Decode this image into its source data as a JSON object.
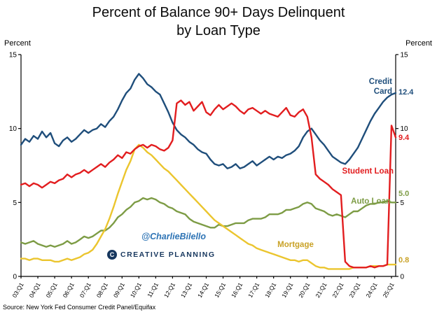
{
  "title": {
    "line1": "Percent of Balance 90+ Days Delinquent",
    "line2": "by Loan Type"
  },
  "axis": {
    "left_unit": "Percent",
    "right_unit": "Percent",
    "y_ticks": [
      0,
      5,
      10,
      15
    ]
  },
  "annotations": {
    "credit_card": [
      "Credit",
      "Card"
    ],
    "student_loan": "Student Loan",
    "auto_loan": "Auto Loan",
    "mortgage": "Mortgage"
  },
  "watermark": {
    "handle": "@CharlieBilello",
    "handle_color": "#2E74B5",
    "brand": "CREATIVE PLANNING",
    "brand_color": "#17375E",
    "logo_letter": "C"
  },
  "source": "Source: New York Fed Consumer Credit Panel/Equifax",
  "chart_data": {
    "type": "line",
    "title": "Percent of Balance 90+ Days Delinquent by Loan Type",
    "x_unit": "quarter",
    "points_start": "2003:Q1",
    "points_end": "2025:Q2",
    "x_tick_every": 4,
    "x_tick_labels": [
      "03:Q1",
      "04:Q1",
      "05:Q1",
      "06:Q1",
      "07:Q1",
      "08:Q1",
      "09:Q1",
      "10:Q1",
      "11:Q1",
      "12:Q1",
      "13:Q1",
      "14:Q1",
      "15:Q1",
      "16:Q1",
      "17:Q1",
      "18:Q1",
      "19:Q1",
      "20:Q1",
      "21:Q1",
      "22:Q1",
      "23:Q1",
      "24:Q1",
      "25:Q1"
    ],
    "ylim": [
      0,
      15
    ],
    "grid": false,
    "legend": "in-plot colored labels",
    "series": [
      {
        "name": "Credit Card",
        "color": "#1F4E7B",
        "label_color": "#1F4E7B",
        "end_label": "12.4",
        "values": [
          8.9,
          9.3,
          9.1,
          9.5,
          9.3,
          9.8,
          9.4,
          9.7,
          9.0,
          8.8,
          9.2,
          9.4,
          9.1,
          9.3,
          9.6,
          9.9,
          9.7,
          9.9,
          10.0,
          10.3,
          10.1,
          10.5,
          10.8,
          11.3,
          11.9,
          12.4,
          12.7,
          13.3,
          13.7,
          13.4,
          13.0,
          12.8,
          12.5,
          12.3,
          11.7,
          11.1,
          10.4,
          9.9,
          9.6,
          9.4,
          9.1,
          8.9,
          8.6,
          8.4,
          8.3,
          7.9,
          7.6,
          7.5,
          7.6,
          7.3,
          7.4,
          7.6,
          7.3,
          7.4,
          7.6,
          7.8,
          7.5,
          7.7,
          7.9,
          8.1,
          7.9,
          8.1,
          8.0,
          8.2,
          8.3,
          8.5,
          8.8,
          9.4,
          9.8,
          10.0,
          9.6,
          9.2,
          8.9,
          8.5,
          8.1,
          7.9,
          7.7,
          7.6,
          7.9,
          8.3,
          8.7,
          9.3,
          9.9,
          10.5,
          11.0,
          11.4,
          11.8,
          12.1,
          12.3,
          12.4
        ]
      },
      {
        "name": "Student Loan",
        "color": "#E21D1F",
        "label_color": "#E21D1F",
        "end_label": "9.4",
        "values": [
          6.2,
          6.3,
          6.1,
          6.3,
          6.2,
          6.0,
          6.2,
          6.4,
          6.3,
          6.5,
          6.6,
          6.9,
          6.7,
          6.9,
          7.0,
          7.2,
          7.0,
          7.2,
          7.4,
          7.6,
          7.4,
          7.7,
          7.9,
          8.2,
          8.0,
          8.4,
          8.3,
          8.6,
          8.8,
          8.9,
          8.7,
          8.9,
          8.8,
          8.6,
          8.5,
          8.7,
          9.2,
          11.7,
          11.9,
          11.6,
          11.8,
          11.2,
          11.5,
          11.8,
          11.1,
          10.9,
          11.3,
          11.6,
          11.3,
          11.5,
          11.7,
          11.5,
          11.2,
          11.0,
          11.3,
          11.4,
          11.2,
          11.0,
          11.2,
          11.0,
          10.9,
          10.8,
          11.1,
          11.4,
          10.9,
          10.8,
          11.1,
          11.3,
          10.8,
          9.4,
          6.9,
          6.6,
          6.4,
          6.2,
          5.9,
          5.7,
          5.5,
          1.0,
          0.7,
          0.6,
          0.6,
          0.6,
          0.6,
          0.7,
          0.6,
          0.7,
          0.7,
          0.8,
          10.2,
          9.4
        ]
      },
      {
        "name": "Auto Loan",
        "color": "#7D9C45",
        "label_color": "#7D9C45",
        "end_label": "5.0",
        "values": [
          2.3,
          2.2,
          2.3,
          2.4,
          2.2,
          2.1,
          2.0,
          2.1,
          2.0,
          2.1,
          2.2,
          2.4,
          2.2,
          2.3,
          2.5,
          2.7,
          2.6,
          2.7,
          2.9,
          3.1,
          3.1,
          3.3,
          3.6,
          4.0,
          4.2,
          4.5,
          4.7,
          5.0,
          5.1,
          5.3,
          5.2,
          5.3,
          5.2,
          5.0,
          4.9,
          4.7,
          4.6,
          4.4,
          4.3,
          4.2,
          3.9,
          3.7,
          3.6,
          3.5,
          3.4,
          3.3,
          3.3,
          3.5,
          3.4,
          3.4,
          3.5,
          3.6,
          3.6,
          3.6,
          3.8,
          3.9,
          3.9,
          3.9,
          4.0,
          4.2,
          4.2,
          4.2,
          4.3,
          4.5,
          4.5,
          4.6,
          4.7,
          4.9,
          5.0,
          4.9,
          4.6,
          4.5,
          4.4,
          4.2,
          4.1,
          4.2,
          4.1,
          4.0,
          4.2,
          4.4,
          4.4,
          4.6,
          4.8,
          4.9,
          4.9,
          5.0,
          5.0,
          5.1,
          5.0,
          5.0
        ]
      },
      {
        "name": "Mortgage",
        "color": "#EBC52E",
        "label_color": "#C9A227",
        "end_label": "0.8",
        "values": [
          1.2,
          1.2,
          1.1,
          1.2,
          1.2,
          1.1,
          1.1,
          1.1,
          1.0,
          1.0,
          1.1,
          1.2,
          1.1,
          1.2,
          1.3,
          1.5,
          1.6,
          1.8,
          2.2,
          2.7,
          3.2,
          3.9,
          4.7,
          5.6,
          6.4,
          7.2,
          7.8,
          8.6,
          8.9,
          8.7,
          8.4,
          8.2,
          7.9,
          7.6,
          7.3,
          7.1,
          6.8,
          6.5,
          6.2,
          5.9,
          5.6,
          5.3,
          5.0,
          4.7,
          4.4,
          4.1,
          3.8,
          3.6,
          3.4,
          3.2,
          3.0,
          2.8,
          2.6,
          2.4,
          2.2,
          2.1,
          1.9,
          1.8,
          1.7,
          1.6,
          1.5,
          1.4,
          1.3,
          1.2,
          1.1,
          1.1,
          1.0,
          1.1,
          1.1,
          0.9,
          0.7,
          0.6,
          0.6,
          0.5,
          0.5,
          0.5,
          0.5,
          0.5,
          0.5,
          0.6,
          0.6,
          0.6,
          0.6,
          0.7,
          0.7,
          0.7,
          0.7,
          0.8,
          0.8,
          0.8
        ]
      }
    ]
  }
}
